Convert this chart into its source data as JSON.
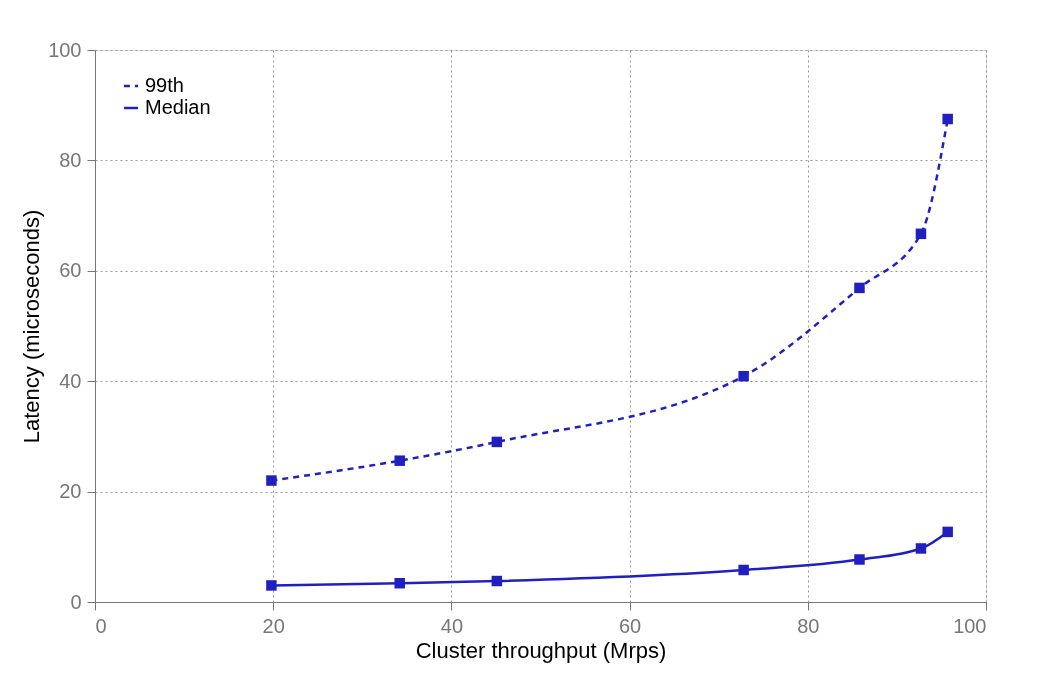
{
  "chart_data": {
    "type": "line",
    "xlabel": "Cluster throughput (Mrps)",
    "ylabel": "Latency (microseconds)",
    "x": [
      19.8,
      34.2,
      45.1,
      72.8,
      85.8,
      92.7,
      95.7
    ],
    "series": [
      {
        "name": "99th",
        "color": "#2020c0",
        "line_style": "dashed",
        "values": [
          22.0,
          25.6,
          29.0,
          40.9,
          56.9,
          66.7,
          87.5
        ]
      },
      {
        "name": "Median",
        "color": "#2020c0",
        "line_style": "solid",
        "values": [
          3.0,
          3.4,
          3.8,
          5.8,
          7.7,
          9.7,
          12.7
        ]
      }
    ],
    "xlim": [
      0,
      100
    ],
    "xticks": [
      0,
      20,
      40,
      60,
      80,
      100
    ],
    "ylim": [
      0,
      100
    ],
    "yticks": [
      0,
      20,
      40,
      60,
      80,
      100
    ],
    "grid": true,
    "legend": "top left",
    "marker": "square"
  }
}
